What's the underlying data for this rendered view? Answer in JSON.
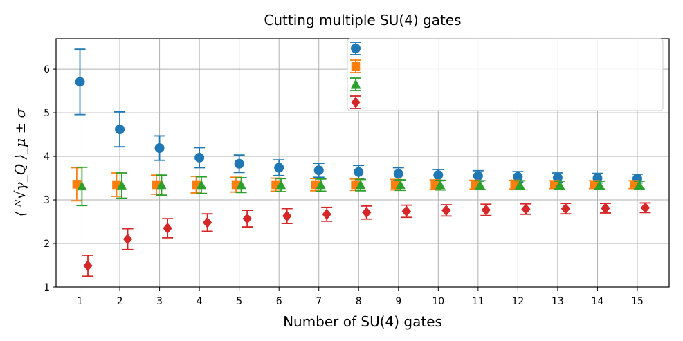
{
  "chart_data": {
    "type": "scatter",
    "title": "Cutting multiple SU(4) gates",
    "xlabel": "Number of SU(4) gates",
    "ylabel": "⟨ ᴺ√γ_Q ⟩_μ ± σ",
    "x": [
      1,
      2,
      3,
      4,
      5,
      6,
      7,
      8,
      9,
      10,
      11,
      12,
      13,
      14,
      15
    ],
    "xlim": [
      0.4,
      15.8
    ],
    "ylim": [
      1.0,
      6.7
    ],
    "yticks": [
      1,
      2,
      3,
      4,
      5,
      6
    ],
    "grid": true,
    "legend_position": "top-right",
    "series": [
      {
        "name": "",
        "marker": "circle",
        "color": "#1f77b4",
        "x_offset": 0.0,
        "values": [
          5.71,
          4.62,
          4.19,
          3.97,
          3.83,
          3.74,
          3.68,
          3.64,
          3.6,
          3.57,
          3.55,
          3.53,
          3.51,
          3.5,
          3.49
        ],
        "errors": [
          0.75,
          0.4,
          0.28,
          0.23,
          0.2,
          0.18,
          0.16,
          0.15,
          0.14,
          0.13,
          0.12,
          0.12,
          0.11,
          0.11,
          0.1
        ]
      },
      {
        "name": "",
        "marker": "square",
        "color": "#ff7f0e",
        "x_offset": -0.08,
        "values": [
          3.36,
          3.35,
          3.35,
          3.35,
          3.35,
          3.35,
          3.35,
          3.35,
          3.35,
          3.35,
          3.35,
          3.35,
          3.35,
          3.35,
          3.35
        ],
        "errors": [
          0.38,
          0.27,
          0.22,
          0.19,
          0.17,
          0.15,
          0.14,
          0.13,
          0.12,
          0.11,
          0.1,
          0.1,
          0.09,
          0.09,
          0.09
        ]
      },
      {
        "name": "",
        "marker": "triangle",
        "color": "#2ca02c",
        "x_offset": 0.05,
        "values": [
          3.31,
          3.33,
          3.34,
          3.34,
          3.34,
          3.34,
          3.34,
          3.34,
          3.34,
          3.34,
          3.34,
          3.34,
          3.34,
          3.34,
          3.34
        ],
        "errors": [
          0.44,
          0.29,
          0.23,
          0.19,
          0.17,
          0.15,
          0.14,
          0.13,
          0.12,
          0.11,
          0.1,
          0.1,
          0.09,
          0.09,
          0.09
        ]
      },
      {
        "name": "",
        "marker": "diamond",
        "color": "#d62728",
        "x_offset": 0.2,
        "values": [
          1.49,
          2.1,
          2.35,
          2.48,
          2.57,
          2.63,
          2.67,
          2.71,
          2.74,
          2.76,
          2.77,
          2.79,
          2.8,
          2.81,
          2.82
        ],
        "errors": [
          0.24,
          0.24,
          0.22,
          0.2,
          0.19,
          0.17,
          0.16,
          0.15,
          0.14,
          0.13,
          0.13,
          0.12,
          0.12,
          0.11,
          0.11
        ]
      }
    ]
  }
}
